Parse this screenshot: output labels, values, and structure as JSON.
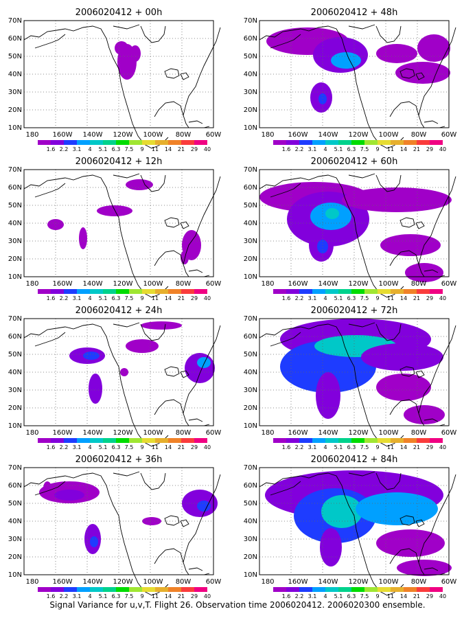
{
  "caption": "Signal Variance for u,v,T. Flight 26. Observation time 2006020412. 2006020300 ensemble.",
  "colorbar": {
    "labels": [
      "1.6",
      "2.2",
      "3.1",
      "4",
      "5.1",
      "6.3",
      "7.5",
      "9",
      "11",
      "14",
      "21",
      "29",
      "40"
    ],
    "colors": [
      "#a000c8",
      "#8200dc",
      "#1e3cff",
      "#00a0ff",
      "#00c8c8",
      "#00d28c",
      "#00dc00",
      "#a0e632",
      "#e6dc32",
      "#e6af2d",
      "#f08228",
      "#fa3c3c",
      "#f00082"
    ]
  },
  "axes": {
    "lat_labels": [
      "70N",
      "60N",
      "50N",
      "40N",
      "30N",
      "20N",
      "10N"
    ],
    "lon_labels": [
      "180",
      "160W",
      "140W",
      "120W",
      "100W",
      "80W",
      "60W"
    ]
  },
  "panels": [
    {
      "title": "2006020412 + 00h",
      "lead_hours": 0
    },
    {
      "title": "2006020412 + 48h",
      "lead_hours": 48
    },
    {
      "title": "2006020412 + 12h",
      "lead_hours": 12
    },
    {
      "title": "2006020412 + 60h",
      "lead_hours": 60
    },
    {
      "title": "2006020412 + 24h",
      "lead_hours": 24
    },
    {
      "title": "2006020412 + 72h",
      "lead_hours": 72
    },
    {
      "title": "2006020412 + 36h",
      "lead_hours": 36
    },
    {
      "title": "2006020412 + 84h",
      "lead_hours": 84
    }
  ]
}
